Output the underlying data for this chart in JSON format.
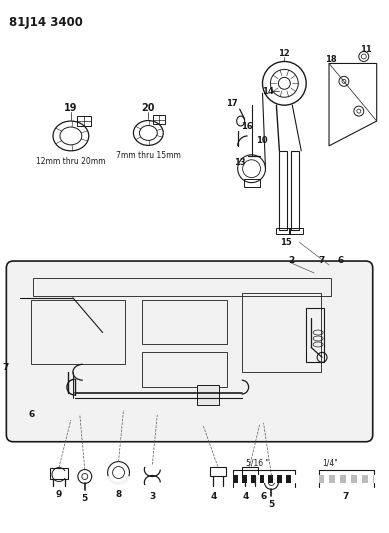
{
  "title": "81J14 3400",
  "bg_color": "#ffffff",
  "line_color": "#1a1a1a",
  "clamp19_label": "12mm thru 20mm",
  "clamp20_label": "7mm thru 15mm",
  "legend_6_label": "5/16 \"",
  "legend_7_label": "1/4\""
}
